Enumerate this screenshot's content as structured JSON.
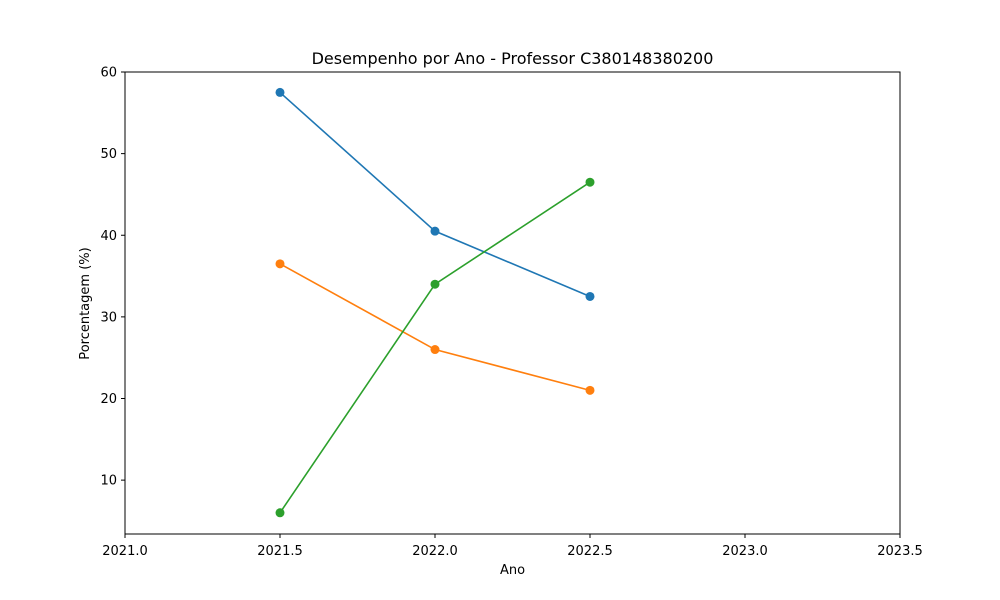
{
  "chart_data": {
    "type": "line",
    "title": "Desempenho por Ano - Professor C380148380200",
    "xlabel": "Ano",
    "ylabel": "Porcentagem (%)",
    "xlim": [
      2021.0,
      2023.5
    ],
    "ylim": [
      3.4,
      60
    ],
    "x_ticks": [
      2021.0,
      2021.5,
      2022.0,
      2022.5,
      2023.0,
      2023.5
    ],
    "x_tick_labels": [
      "2021.0",
      "2021.5",
      "2022.0",
      "2022.5",
      "2023.0",
      "2023.5"
    ],
    "y_ticks": [
      10,
      20,
      30,
      40,
      50,
      60
    ],
    "y_tick_labels": [
      "10",
      "20",
      "30",
      "40",
      "50",
      "60"
    ],
    "grid": false,
    "x": [
      2021.5,
      2022.0,
      2022.5
    ],
    "series": [
      {
        "values": [
          57.5,
          40.5,
          32.5
        ],
        "color": "#1f77b4"
      },
      {
        "values": [
          36.5,
          26.0,
          21.0
        ],
        "color": "#ff7f0e"
      },
      {
        "values": [
          6.0,
          34.0,
          46.5
        ],
        "color": "#2ca02c"
      }
    ]
  }
}
